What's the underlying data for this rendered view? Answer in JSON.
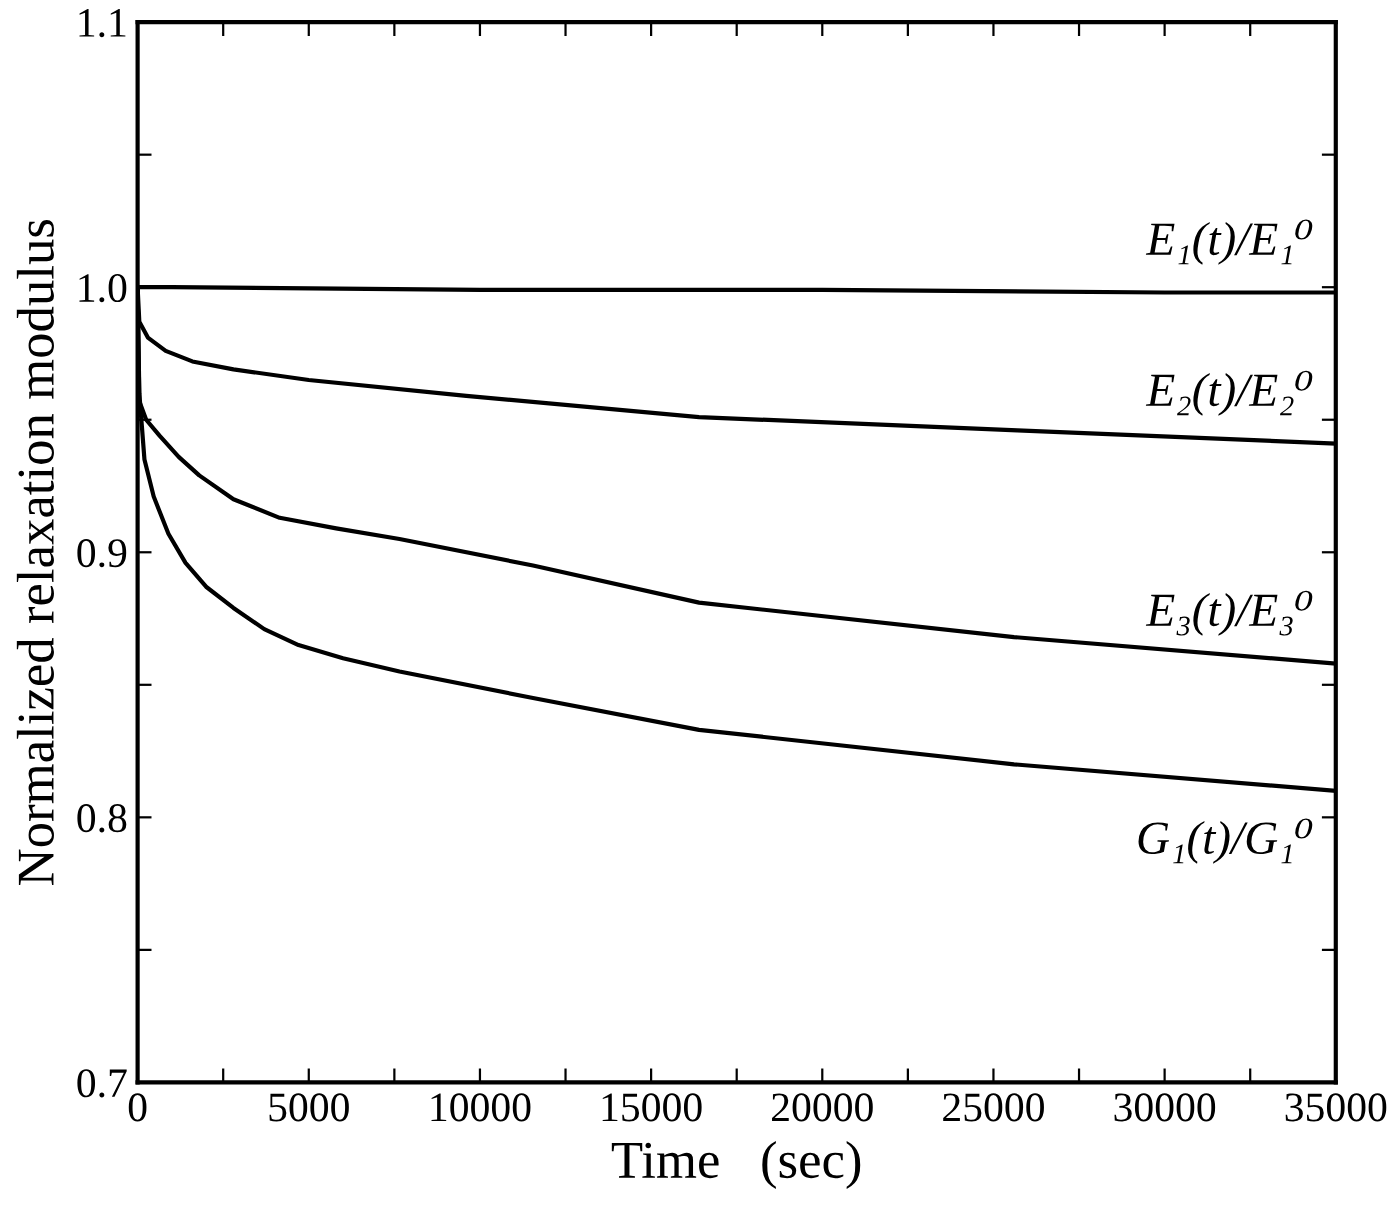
{
  "chart_data": {
    "type": "line",
    "xlabel": "Time   (sec)",
    "ylabel": "Normalized relaxation modulus",
    "xlim": [
      0,
      35000
    ],
    "ylim": [
      0.7,
      1.1
    ],
    "xticks": [
      0,
      {
        "value": 2500,
        "label": null
      },
      5000,
      {
        "value": 7500,
        "label": null
      },
      10000,
      {
        "value": 12500,
        "label": null
      },
      15000,
      {
        "value": 17500,
        "label": null
      },
      20000,
      {
        "value": 22500,
        "label": null
      },
      25000,
      {
        "value": 27500,
        "label": null
      },
      30000,
      {
        "value": 32500,
        "label": null
      },
      35000
    ],
    "yticks": [
      {
        "value": 0.7,
        "label": "0.7"
      },
      {
        "value": 0.75,
        "label": null
      },
      {
        "value": 0.8,
        "label": "0.8"
      },
      {
        "value": 0.85,
        "label": null
      },
      {
        "value": 0.9,
        "label": "0.9"
      },
      {
        "value": 0.95,
        "label": null
      },
      {
        "value": 1.0,
        "label": "1.0"
      },
      {
        "value": 1.05,
        "label": null
      },
      {
        "value": 1.1,
        "label": "1.1"
      }
    ],
    "grid": false,
    "legend": "right",
    "marker": "none",
    "line_style": "solid",
    "series": [
      {
        "name": "E₁(t)/E₁⁰",
        "color": "#000000",
        "x": [
          0,
          1000,
          10000,
          20000,
          30000,
          35000
        ],
        "values": [
          1.0,
          1.0,
          0.999,
          0.999,
          0.998,
          0.998
        ]
      },
      {
        "name": "E₂(t)/E₂⁰",
        "color": "#000000",
        "x": [
          0,
          50,
          300,
          820,
          1600,
          2800,
          5000,
          9600,
          16400,
          25700,
          35000
        ],
        "values": [
          1.0,
          0.987,
          0.981,
          0.976,
          0.972,
          0.969,
          0.965,
          0.959,
          0.951,
          0.946,
          0.941
        ]
      },
      {
        "name": "E₃(t)/E₃⁰",
        "color": "#000000",
        "x": [
          0,
          50,
          250,
          640,
          1200,
          1800,
          2800,
          4150,
          5800,
          7650,
          11550,
          16400,
          25600,
          35000
        ],
        "values": [
          1.0,
          0.957,
          0.95,
          0.944,
          0.936,
          0.929,
          0.92,
          0.913,
          0.909,
          0.905,
          0.895,
          0.881,
          0.868,
          0.858
        ]
      },
      {
        "name": "G₁(t)/G₁⁰",
        "color": "#000000",
        "x": [
          0,
          50,
          200,
          470,
          900,
          1400,
          2000,
          2800,
          3700,
          4700,
          6000,
          7650,
          11550,
          16400,
          25600,
          35000
        ],
        "values": [
          1.0,
          0.96,
          0.935,
          0.921,
          0.907,
          0.896,
          0.887,
          0.879,
          0.871,
          0.865,
          0.86,
          0.855,
          0.845,
          0.833,
          0.82,
          0.81
        ]
      }
    ]
  }
}
